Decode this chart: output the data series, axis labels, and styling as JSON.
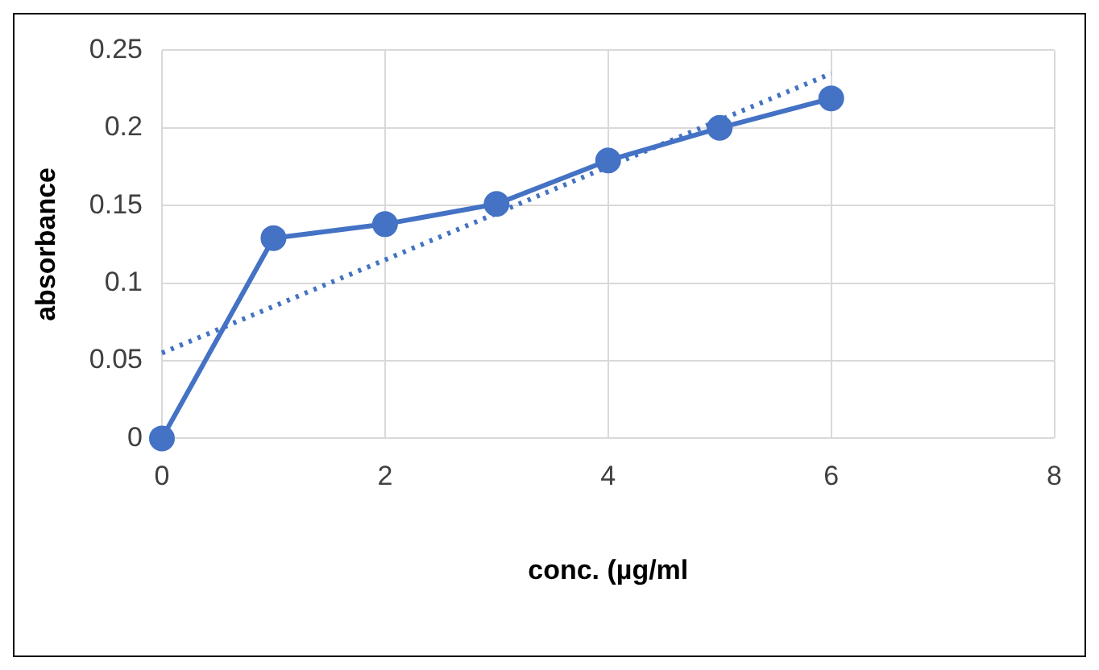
{
  "chart_data": {
    "type": "line",
    "xlabel": "conc. (µg/ml",
    "ylabel": "absorbance",
    "xlim": [
      0,
      8
    ],
    "xticks": [
      0,
      2,
      4,
      6,
      8
    ],
    "ylim": [
      0,
      0.25
    ],
    "yticks": [
      0,
      0.05,
      0.1,
      0.15,
      0.2,
      0.25
    ],
    "grid": true,
    "series": [
      {
        "color": "#4472c4",
        "x": [
          0,
          1,
          2,
          3,
          4,
          5,
          6
        ],
        "values": [
          0,
          0.129,
          0.138,
          0.151,
          0.179,
          0.2,
          0.219
        ],
        "marker": "circle",
        "line_style": "solid"
      },
      {
        "color": "#4472c4",
        "x": [
          0,
          6
        ],
        "values": [
          0.055,
          0.235
        ],
        "marker": "none",
        "line_style": "dotted"
      }
    ]
  }
}
